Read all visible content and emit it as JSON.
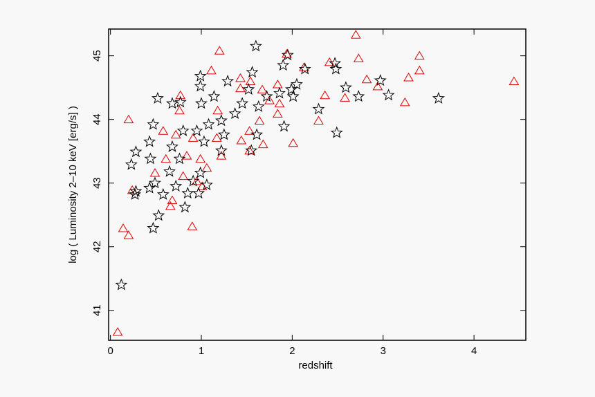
{
  "chart_data": {
    "type": "scatter",
    "x_label": "redshift",
    "y_label": "log ( Luminosity 2–10 keV [erg/s] )",
    "xlim": [
      -0.02,
      4.57
    ],
    "ylim": [
      40.53,
      45.42
    ],
    "xticks": [
      0,
      1,
      2,
      3,
      4
    ],
    "yticks": [
      41,
      42,
      43,
      44,
      45
    ],
    "series": [
      {
        "marker": "triangle",
        "color": "#e00000",
        "x": [
          0.08,
          0.14,
          0.2,
          0.2,
          0.24,
          1.2,
          1.11,
          0.9,
          2.7,
          3.4,
          3.4,
          4.44,
          3.24,
          3.28,
          2.94,
          2.82,
          2.73,
          2.58,
          2.36,
          2.29,
          2.41,
          2.13,
          2.01,
          1.94,
          1.84,
          1.84,
          1.68,
          1.53,
          1.54,
          1.43,
          1.43,
          1.44,
          1.53,
          1.67,
          1.75,
          1.64,
          1.18,
          1.17,
          1.06,
          0.95,
          0.77,
          0.76,
          0.58,
          0.49,
          0.66,
          0.68,
          0.8,
          0.84,
          0.91,
          0.99,
          1.01,
          0.72,
          1.22,
          1.86,
          0.61
        ],
        "values": [
          40.66,
          42.29,
          42.18,
          44.0,
          42.89,
          45.08,
          44.77,
          42.32,
          45.33,
          45.0,
          44.77,
          44.6,
          44.27,
          44.66,
          44.52,
          44.63,
          44.96,
          44.34,
          44.38,
          43.98,
          44.9,
          44.82,
          43.63,
          45.03,
          44.09,
          44.55,
          43.61,
          43.51,
          44.6,
          44.49,
          44.65,
          43.67,
          43.82,
          44.47,
          44.3,
          43.98,
          44.14,
          43.71,
          43.24,
          43.03,
          44.38,
          44.14,
          43.82,
          43.16,
          42.64,
          42.73,
          43.11,
          43.43,
          43.71,
          43.38,
          42.95,
          43.76,
          43.43,
          44.25,
          43.38
        ]
      },
      {
        "marker": "star",
        "color": "#000000",
        "x": [
          0.12,
          0.27,
          0.28,
          0.23,
          0.28,
          0.47,
          0.53,
          0.52,
          0.47,
          0.43,
          0.44,
          0.49,
          0.43,
          0.58,
          0.65,
          0.68,
          0.77,
          0.8,
          0.76,
          0.72,
          0.85,
          0.91,
          0.99,
          0.99,
          1.0,
          0.95,
          1.03,
          0.99,
          0.97,
          1.08,
          1.14,
          1.22,
          1.22,
          1.29,
          1.25,
          1.37,
          1.45,
          1.56,
          1.6,
          1.55,
          1.61,
          1.63,
          1.72,
          1.86,
          1.9,
          1.95,
          1.91,
          2.01,
          2.05,
          1.99,
          2.14,
          2.29,
          2.47,
          2.48,
          2.49,
          2.59,
          2.73,
          2.97,
          3.06,
          3.61,
          1.52,
          0.82,
          0.68,
          1.06
        ],
        "values": [
          41.4,
          42.82,
          42.87,
          43.29,
          43.49,
          42.29,
          42.49,
          44.33,
          43.92,
          43.65,
          43.38,
          43.0,
          42.92,
          42.82,
          43.18,
          44.25,
          44.27,
          43.82,
          43.38,
          42.95,
          42.84,
          43.03,
          44.68,
          44.52,
          44.25,
          43.82,
          43.65,
          43.16,
          42.84,
          43.92,
          44.36,
          43.98,
          43.51,
          44.6,
          43.76,
          44.09,
          44.25,
          44.74,
          45.15,
          43.51,
          43.76,
          44.2,
          44.36,
          44.41,
          44.85,
          45.01,
          43.89,
          44.36,
          44.55,
          44.47,
          44.79,
          44.16,
          44.88,
          44.79,
          43.79,
          44.5,
          44.36,
          44.61,
          44.38,
          44.33,
          44.47,
          42.62,
          43.57,
          42.97
        ]
      }
    ]
  }
}
